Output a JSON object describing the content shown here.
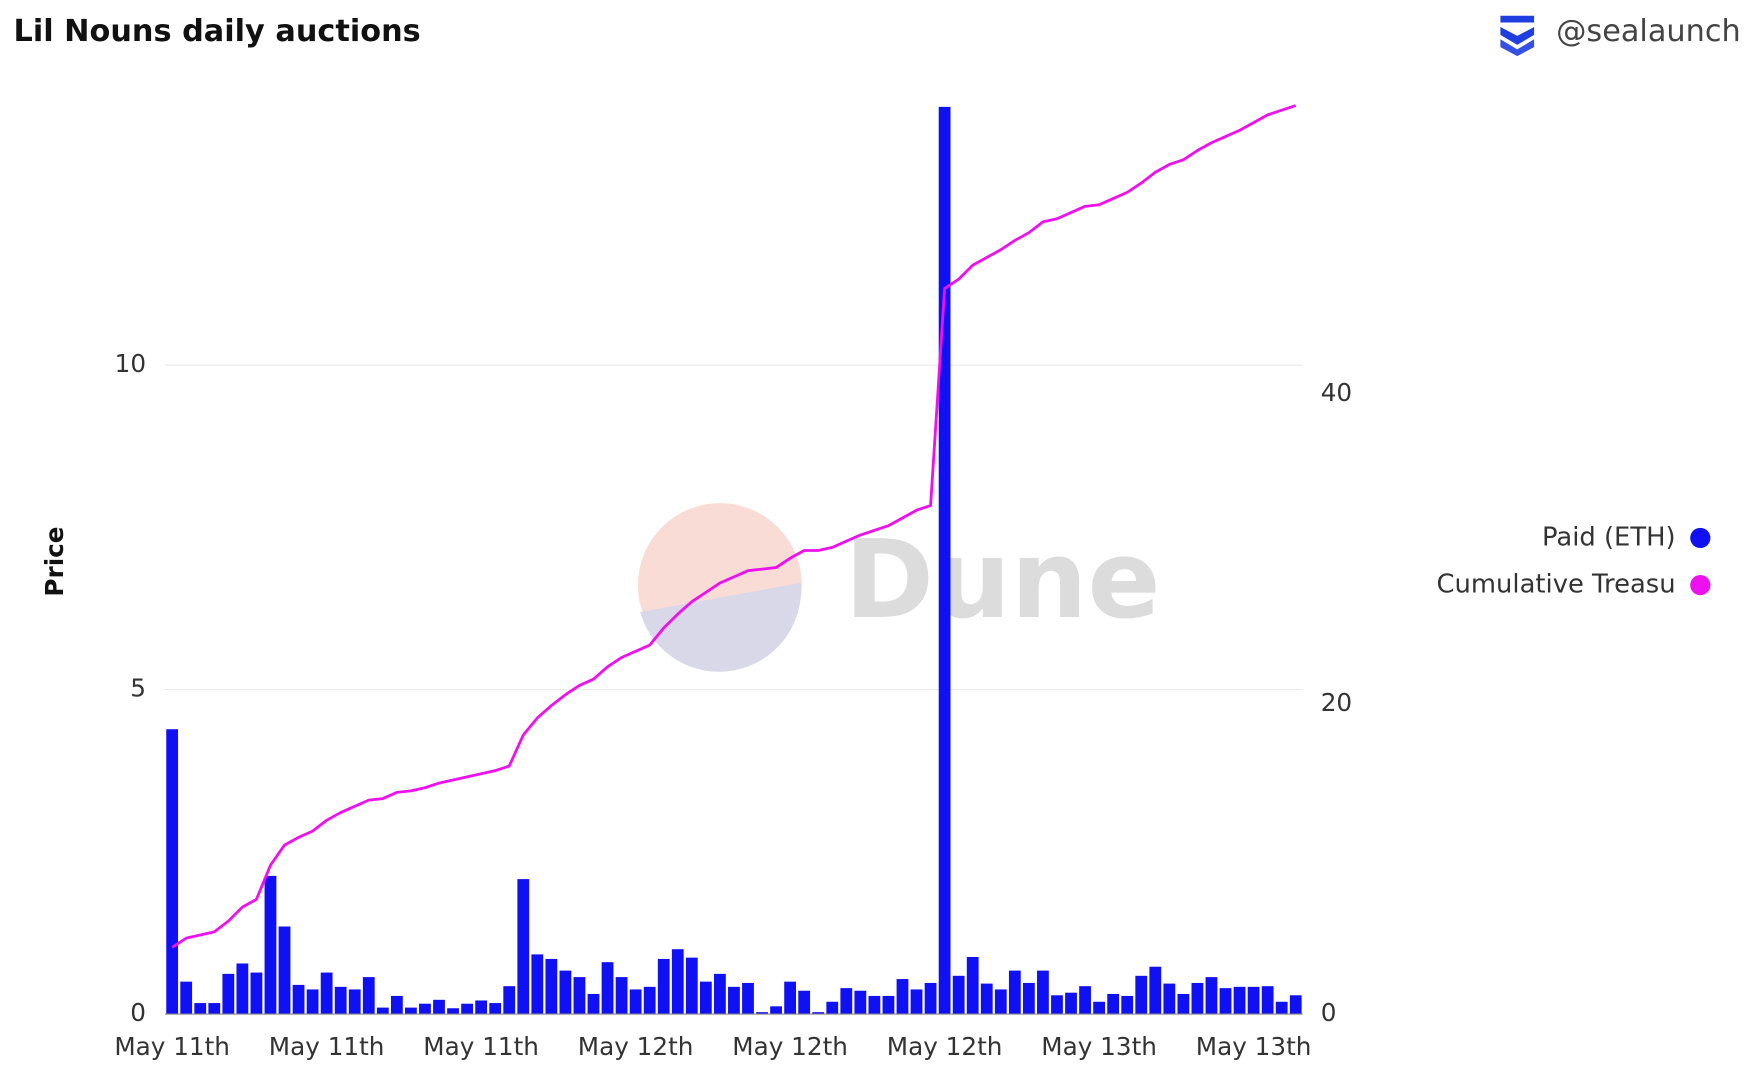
{
  "header": {
    "title": "Lil Nouns daily auctions",
    "handle": "@sealaunch"
  },
  "watermark": "Dune",
  "chart_data": {
    "type": "combo",
    "ylabel": "Price",
    "categories": [
      "May 11th",
      null,
      null,
      null,
      null,
      null,
      null,
      null,
      null,
      null,
      null,
      "May 11th",
      null,
      null,
      null,
      null,
      null,
      null,
      null,
      null,
      null,
      null,
      "May 11th",
      null,
      null,
      null,
      null,
      null,
      null,
      null,
      null,
      null,
      null,
      "May 12th",
      null,
      null,
      null,
      null,
      null,
      null,
      null,
      null,
      null,
      null,
      "May 12th",
      null,
      null,
      null,
      null,
      null,
      null,
      null,
      null,
      null,
      null,
      "May 12th",
      null,
      null,
      null,
      null,
      null,
      null,
      null,
      null,
      null,
      null,
      "May 13th",
      null,
      null,
      null,
      null,
      null,
      null,
      null,
      null,
      null,
      null,
      "May 13th",
      null,
      null,
      null
    ],
    "series": [
      {
        "name": "Paid (ETH)",
        "type": "bar",
        "color": "#1010f5",
        "values": [
          4.39,
          0.5,
          0.17,
          0.17,
          0.62,
          0.78,
          0.64,
          2.13,
          1.35,
          0.45,
          0.38,
          0.64,
          0.42,
          0.38,
          0.57,
          0.1,
          0.28,
          0.1,
          0.16,
          0.22,
          0.09,
          0.16,
          0.21,
          0.17,
          0.43,
          2.08,
          0.92,
          0.85,
          0.67,
          0.57,
          0.31,
          0.8,
          0.57,
          0.38,
          0.42,
          0.85,
          1.0,
          0.87,
          0.5,
          0.62,
          0.42,
          0.48,
          0.03,
          0.12,
          0.5,
          0.36,
          0.03,
          0.19,
          0.4,
          0.36,
          0.28,
          0.28,
          0.54,
          0.38,
          0.48,
          13.98,
          0.59,
          0.88,
          0.47,
          0.38,
          0.67,
          0.48,
          0.67,
          0.29,
          0.33,
          0.43,
          0.19,
          0.31,
          0.28,
          0.59,
          0.73,
          0.47,
          0.31,
          0.48,
          0.57,
          0.4,
          0.42,
          0.42,
          0.43,
          0.19,
          0.29
        ]
      },
      {
        "name": "Cumulative Treasu",
        "type": "line",
        "axis": "y2",
        "color": "#ee10ee",
        "values": [
          4.3,
          4.9,
          5.1,
          5.3,
          6.0,
          6.9,
          7.4,
          9.6,
          10.9,
          11.4,
          11.8,
          12.5,
          13.0,
          13.4,
          13.8,
          13.9,
          14.3,
          14.4,
          14.6,
          14.9,
          15.1,
          15.3,
          15.5,
          15.7,
          16.0,
          18.0,
          19.1,
          19.9,
          20.6,
          21.2,
          21.6,
          22.4,
          23.0,
          23.4,
          23.8,
          24.9,
          25.8,
          26.6,
          27.2,
          27.8,
          28.2,
          28.6,
          28.7,
          28.8,
          29.4,
          29.9,
          29.9,
          30.1,
          30.5,
          30.9,
          31.2,
          31.5,
          32.0,
          32.5,
          32.8,
          46.8,
          47.4,
          48.3,
          48.8,
          49.3,
          49.9,
          50.4,
          51.1,
          51.3,
          51.7,
          52.1,
          52.2,
          52.6,
          53.0,
          53.6,
          54.3,
          54.8,
          55.1,
          55.7,
          56.2,
          56.6,
          57.0,
          57.5,
          58.0,
          58.3,
          58.6
        ]
      }
    ],
    "ylim": [
      0,
      14
    ],
    "yticks": [
      0,
      5,
      10
    ],
    "y2lim": [
      0,
      58.6
    ],
    "y2ticks": [
      0,
      20,
      40
    ],
    "grid": true,
    "legend": "right"
  }
}
